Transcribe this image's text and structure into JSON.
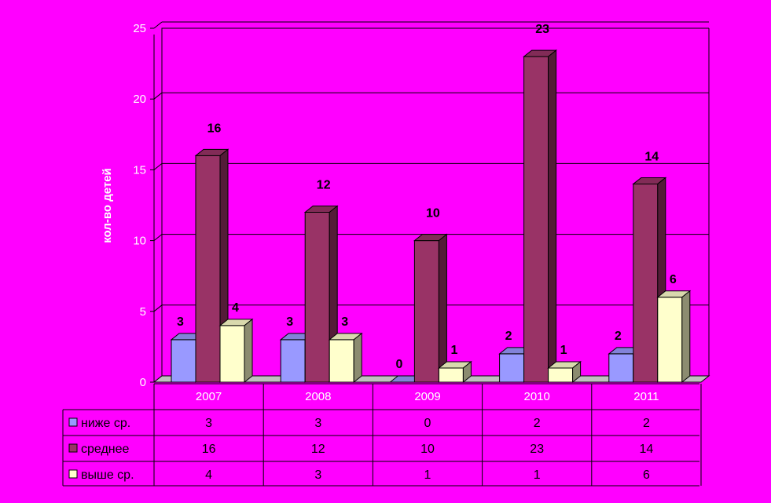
{
  "chart_data": {
    "type": "bar",
    "style": "3d-clustered-column-with-data-table",
    "ylabel": "кол-во детей",
    "ylim": [
      0,
      25
    ],
    "yticks": [
      0,
      5,
      10,
      15,
      20,
      25
    ],
    "categories": [
      "2007",
      "2008",
      "2009",
      "2010",
      "2011"
    ],
    "series": [
      {
        "name": "ниже ср.",
        "values": [
          3,
          3,
          0,
          2,
          2
        ],
        "color": "#9999ff"
      },
      {
        "name": "среднее",
        "values": [
          16,
          12,
          10,
          23,
          14
        ],
        "color": "#993366"
      },
      {
        "name": "выше ср.",
        "values": [
          4,
          3,
          1,
          1,
          6
        ],
        "color": "#ffffcc"
      }
    ],
    "grid": true,
    "data_labels": true,
    "legend": "data-table",
    "background_color": "#ff00ff",
    "plot_background_color": "#ff00ff",
    "gridline_color": "#000000",
    "text_color": "#ffffff"
  }
}
